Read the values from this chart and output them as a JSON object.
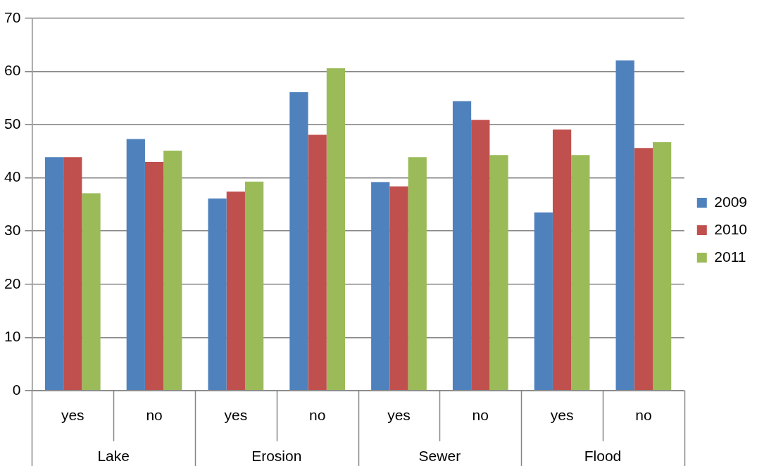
{
  "chart_data": {
    "type": "bar",
    "categories": [
      "yes",
      "no",
      "yes",
      "no",
      "yes",
      "no",
      "yes",
      "no"
    ],
    "series": [
      {
        "name": "2009",
        "color": "#4f81bd",
        "values": [
          43.9,
          47.3,
          36.1,
          56.1,
          39.2,
          54.4,
          33.5,
          62.1
        ]
      },
      {
        "name": "2010",
        "color": "#c0504d",
        "values": [
          43.9,
          43.0,
          37.4,
          48.1,
          38.4,
          50.9,
          49.1,
          45.6
        ]
      },
      {
        "name": "2011",
        "color": "#9bbb59",
        "values": [
          37.1,
          45.1,
          39.3,
          60.6,
          43.9,
          44.3,
          44.3,
          46.7
        ]
      }
    ],
    "annotations": [
      "Lake",
      "Erosion",
      "Sewer",
      "Flood"
    ],
    "ylim": [
      0,
      70
    ],
    "yticks": [
      0,
      10,
      20,
      30,
      40,
      50,
      60,
      70
    ],
    "grid": "y",
    "legend": "right"
  }
}
